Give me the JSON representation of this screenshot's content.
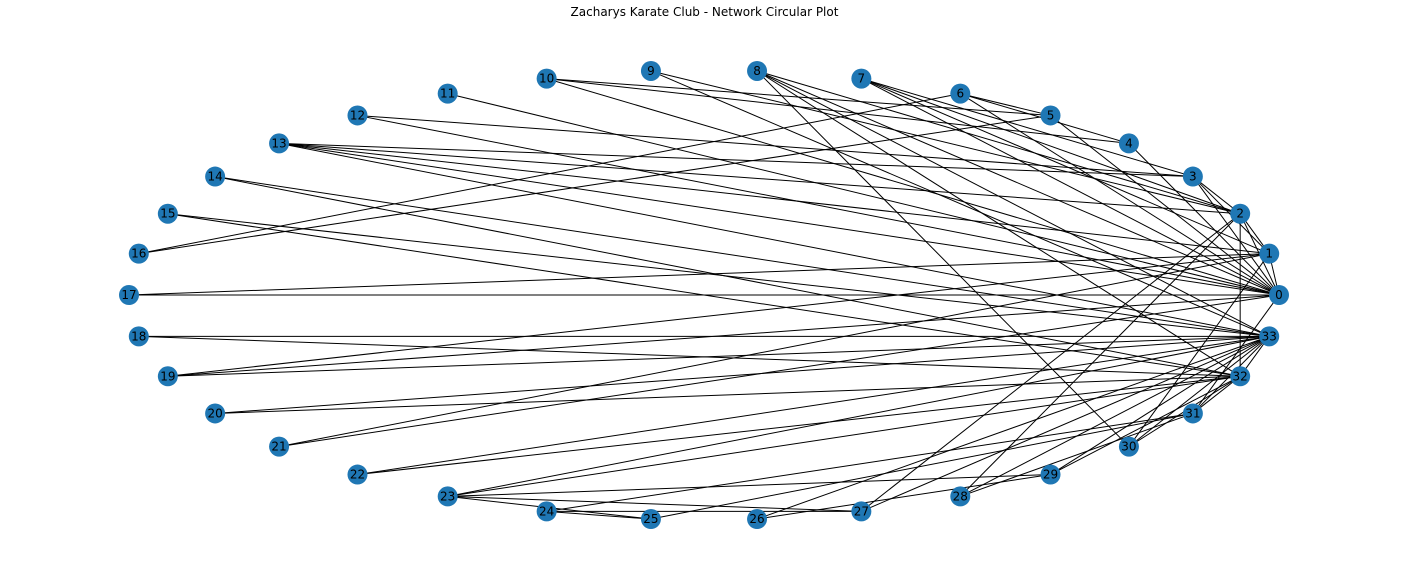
{
  "title": "Zacharys Karate Club - Network Circular Plot",
  "node_color": "#1f77b4",
  "edge_color": "#000000",
  "layout": "circular",
  "nodes": [
    "0",
    "1",
    "2",
    "3",
    "4",
    "5",
    "6",
    "7",
    "8",
    "9",
    "10",
    "11",
    "12",
    "13",
    "14",
    "15",
    "16",
    "17",
    "18",
    "19",
    "20",
    "21",
    "22",
    "23",
    "24",
    "25",
    "26",
    "27",
    "28",
    "29",
    "30",
    "31",
    "32",
    "33"
  ],
  "edges": [
    [
      0,
      1
    ],
    [
      0,
      2
    ],
    [
      0,
      3
    ],
    [
      0,
      4
    ],
    [
      0,
      5
    ],
    [
      0,
      6
    ],
    [
      0,
      7
    ],
    [
      0,
      8
    ],
    [
      0,
      10
    ],
    [
      0,
      11
    ],
    [
      0,
      12
    ],
    [
      0,
      13
    ],
    [
      0,
      17
    ],
    [
      0,
      19
    ],
    [
      0,
      21
    ],
    [
      0,
      31
    ],
    [
      1,
      2
    ],
    [
      1,
      3
    ],
    [
      1,
      7
    ],
    [
      1,
      13
    ],
    [
      1,
      17
    ],
    [
      1,
      19
    ],
    [
      1,
      21
    ],
    [
      1,
      30
    ],
    [
      2,
      3
    ],
    [
      2,
      7
    ],
    [
      2,
      8
    ],
    [
      2,
      9
    ],
    [
      2,
      13
    ],
    [
      2,
      27
    ],
    [
      2,
      28
    ],
    [
      2,
      32
    ],
    [
      3,
      7
    ],
    [
      3,
      12
    ],
    [
      3,
      13
    ],
    [
      4,
      6
    ],
    [
      4,
      10
    ],
    [
      5,
      6
    ],
    [
      5,
      10
    ],
    [
      5,
      16
    ],
    [
      6,
      16
    ],
    [
      8,
      30
    ],
    [
      8,
      32
    ],
    [
      8,
      33
    ],
    [
      9,
      33
    ],
    [
      13,
      33
    ],
    [
      14,
      32
    ],
    [
      14,
      33
    ],
    [
      15,
      32
    ],
    [
      15,
      33
    ],
    [
      18,
      32
    ],
    [
      18,
      33
    ],
    [
      19,
      33
    ],
    [
      20,
      32
    ],
    [
      20,
      33
    ],
    [
      22,
      32
    ],
    [
      22,
      33
    ],
    [
      23,
      25
    ],
    [
      23,
      27
    ],
    [
      23,
      29
    ],
    [
      23,
      32
    ],
    [
      23,
      33
    ],
    [
      24,
      25
    ],
    [
      24,
      27
    ],
    [
      24,
      31
    ],
    [
      25,
      31
    ],
    [
      26,
      29
    ],
    [
      26,
      33
    ],
    [
      27,
      33
    ],
    [
      28,
      31
    ],
    [
      28,
      33
    ],
    [
      29,
      32
    ],
    [
      29,
      33
    ],
    [
      30,
      32
    ],
    [
      30,
      33
    ],
    [
      31,
      32
    ],
    [
      31,
      33
    ],
    [
      32,
      33
    ]
  ]
}
